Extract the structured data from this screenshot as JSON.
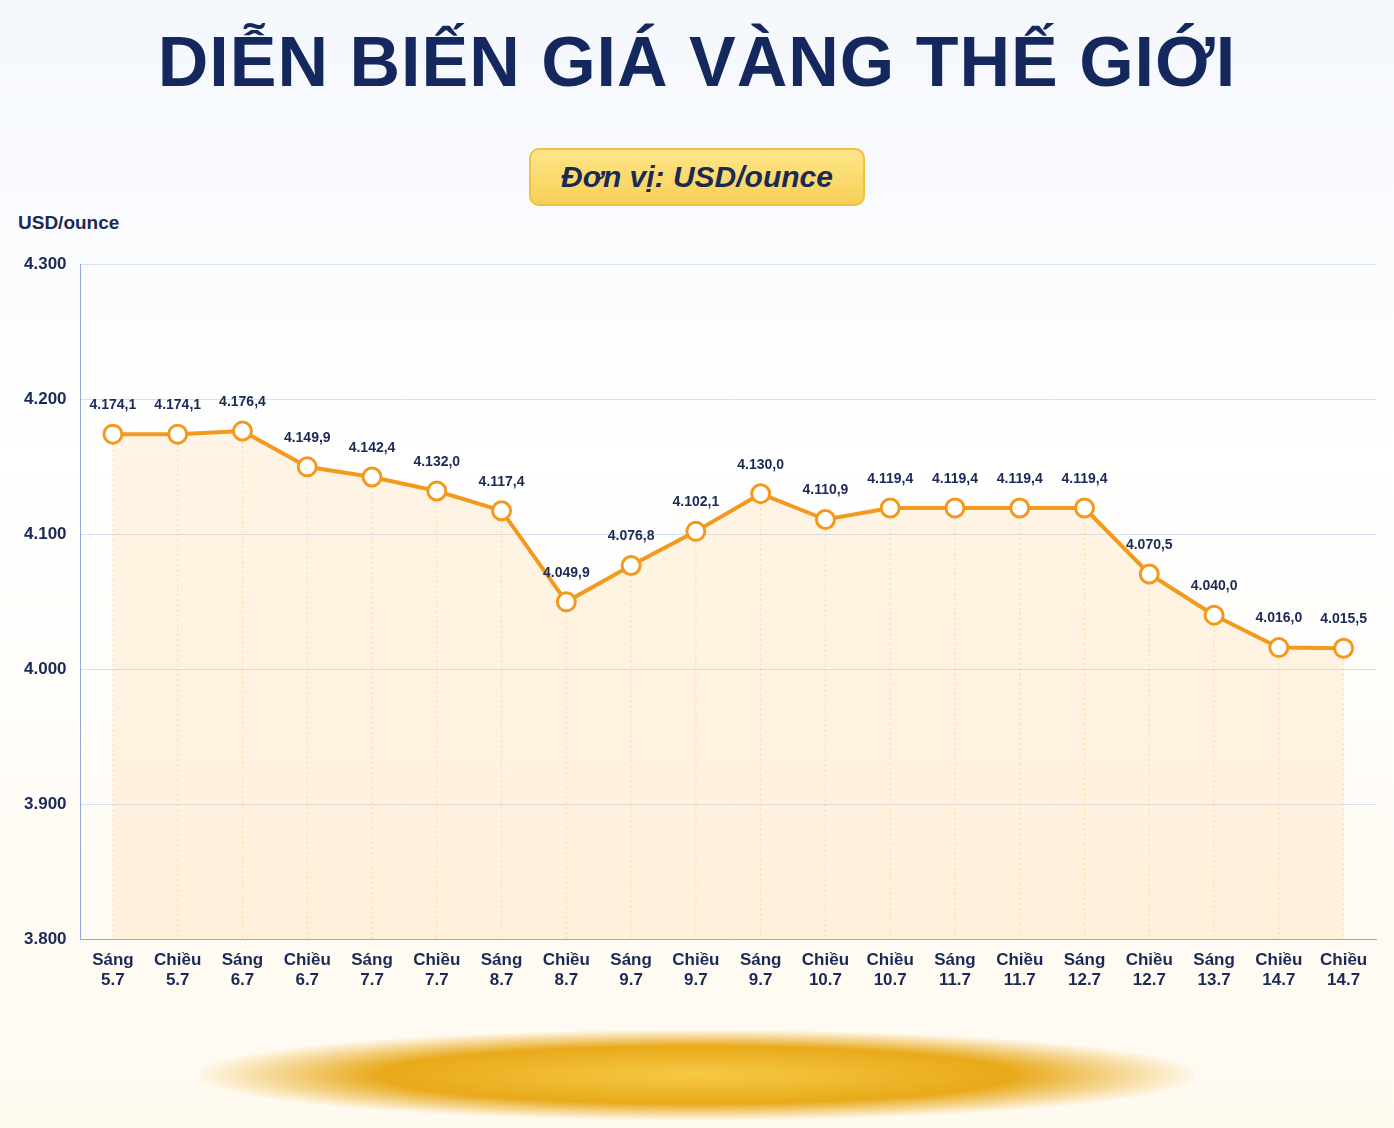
{
  "chart_data": {
    "type": "line",
    "title": "DIỄN BIẾN GIÁ VÀNG THẾ GIỚI",
    "subtitle": "Đơn vị: USD/ounce",
    "ylabel": "USD/ounce",
    "categories": [
      "Sáng 5.7",
      "Chiều 5.7",
      "Sáng 6.7",
      "Chiều 6.7",
      "Sáng 7.7",
      "Chiều 7.7",
      "Sáng 8.7",
      "Chiều 8.7",
      "Sáng 9.7",
      "Chiều 9.7",
      "Sáng 9.7",
      "Chiều 10.7",
      "Chiều 10.7",
      "Sáng 11.7",
      "Chiều 11.7",
      "Sáng 12.7",
      "Chiều 12.7",
      "Sáng 13.7",
      "Chiều 14.7",
      "Chiều 14.7"
    ],
    "values": [
      4174.1,
      4174.1,
      4176.4,
      4149.9,
      4142.4,
      4132.0,
      4117.4,
      4049.9,
      4076.8,
      4102.1,
      4130.0,
      4110.9,
      4119.4,
      4119.4,
      4119.4,
      4119.4,
      4070.5,
      4040.0,
      4016.0,
      4015.5
    ],
    "value_labels": [
      "4.174,1",
      "4.174,1",
      "4.176,4",
      "4.149,9",
      "4.142,4",
      "4.132,0",
      "4.117,4",
      "4.049,9",
      "4.076,8",
      "4.102,1",
      "4.130,0",
      "4.110,9",
      "4.119,4",
      "4.119,4",
      "4.119,4",
      "4.119,4",
      "4.070,5",
      "4.040,0",
      "4.016,0",
      "4.015,5"
    ],
    "color": "#f39a1e",
    "marker": "circle",
    "data_labels": true,
    "grid": true,
    "ylim": [
      3800,
      4300
    ],
    "yticks": [
      {
        "value": 3800,
        "label": "3.800"
      },
      {
        "value": 3900,
        "label": "3.900"
      },
      {
        "value": 4000,
        "label": "4.000"
      },
      {
        "value": 4100,
        "label": "4.100"
      },
      {
        "value": 4200,
        "label": "4.200"
      },
      {
        "value": 4300,
        "label": "4.300"
      }
    ]
  }
}
